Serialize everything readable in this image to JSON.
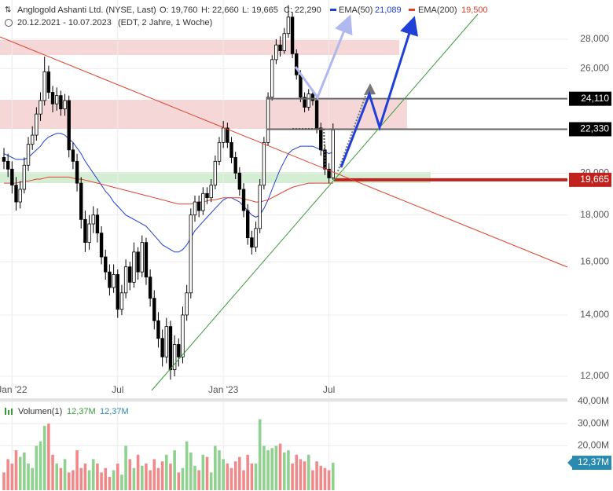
{
  "chart_data": {
    "type": "candlestick",
    "header": {
      "title": "Anglogold Ashanti Ltd. (NYSE, Last)",
      "open": "O: 19,760",
      "high": "H: 22,660",
      "low": "L: 19,665",
      "close": "C: 22,290",
      "range": "20.12.2021 - 10.07.2023",
      "info": "(EDT, 2 Jahre, 1 Woche)"
    },
    "categories": [
      null,
      null,
      "Jan '22",
      null,
      null,
      null,
      null,
      null,
      null,
      null,
      null,
      null,
      null,
      null,
      null,
      null,
      null,
      null,
      null,
      null,
      null,
      null,
      null,
      null,
      null,
      null,
      null,
      null,
      "Jul",
      null,
      null,
      null,
      null,
      null,
      null,
      null,
      null,
      null,
      null,
      null,
      null,
      null,
      null,
      null,
      null,
      null,
      null,
      null,
      null,
      null,
      null,
      null,
      null,
      null,
      "Jan '23",
      null,
      null,
      null,
      null,
      null,
      null,
      null,
      null,
      null,
      null,
      null,
      null,
      null,
      null,
      null,
      null,
      null,
      null,
      null,
      null,
      null,
      null,
      null,
      null,
      null,
      "Jul",
      null
    ],
    "ohlc": [
      [
        20.8,
        21.3,
        20.2,
        20.6
      ],
      [
        20.6,
        21.0,
        19.8,
        20.2
      ],
      [
        20.2,
        20.6,
        19.0,
        19.4
      ],
      [
        19.4,
        19.8,
        18.2,
        18.6
      ],
      [
        18.6,
        19.6,
        18.3,
        19.2
      ],
      [
        19.2,
        20.8,
        19.0,
        20.4
      ],
      [
        20.4,
        21.9,
        20.1,
        21.5
      ],
      [
        21.5,
        22.5,
        21.2,
        22.0
      ],
      [
        22.0,
        23.6,
        21.7,
        23.2
      ],
      [
        23.2,
        24.5,
        22.8,
        24.0
      ],
      [
        24.0,
        26.8,
        23.7,
        25.8
      ],
      [
        25.8,
        26.2,
        24.1,
        24.5
      ],
      [
        24.5,
        24.9,
        23.3,
        23.8
      ],
      [
        23.8,
        24.8,
        23.4,
        24.3
      ],
      [
        24.3,
        24.6,
        23.1,
        23.5
      ],
      [
        23.5,
        24.4,
        23.1,
        24.0
      ],
      [
        24.0,
        24.3,
        20.8,
        21.2
      ],
      [
        21.2,
        21.6,
        20.2,
        20.6
      ],
      [
        20.6,
        21.0,
        19.1,
        19.5
      ],
      [
        19.5,
        19.8,
        17.4,
        17.8
      ],
      [
        17.8,
        18.2,
        16.4,
        16.8
      ],
      [
        16.8,
        18.0,
        16.5,
        17.6
      ],
      [
        17.6,
        18.4,
        17.2,
        18.0
      ],
      [
        18.0,
        18.3,
        16.8,
        17.2
      ],
      [
        17.2,
        17.5,
        15.9,
        16.2
      ],
      [
        16.2,
        16.5,
        15.3,
        15.6
      ],
      [
        15.6,
        15.9,
        14.7,
        15.0
      ],
      [
        15.0,
        15.9,
        14.8,
        15.5
      ],
      [
        15.5,
        15.7,
        13.9,
        14.2
      ],
      [
        14.2,
        15.1,
        14.0,
        14.8
      ],
      [
        14.8,
        16.1,
        14.6,
        15.8
      ],
      [
        15.8,
        16.0,
        14.9,
        15.2
      ],
      [
        15.2,
        16.8,
        15.0,
        16.4
      ],
      [
        16.4,
        16.6,
        15.3,
        15.6
      ],
      [
        15.6,
        17.1,
        15.4,
        16.8
      ],
      [
        16.8,
        17.0,
        15.1,
        15.4
      ],
      [
        15.4,
        15.7,
        14.3,
        14.6
      ],
      [
        14.6,
        14.9,
        13.5,
        13.8
      ],
      [
        13.8,
        14.1,
        12.9,
        13.2
      ],
      [
        13.2,
        13.5,
        12.3,
        12.6
      ],
      [
        12.6,
        13.9,
        12.4,
        13.6
      ],
      [
        13.6,
        13.8,
        11.9,
        12.2
      ],
      [
        12.2,
        13.3,
        12.0,
        13.0
      ],
      [
        13.0,
        13.2,
        12.3,
        12.6
      ],
      [
        12.6,
        14.3,
        12.4,
        14.0
      ],
      [
        14.0,
        15.1,
        13.8,
        14.8
      ],
      [
        14.8,
        18.3,
        14.6,
        18.0
      ],
      [
        18.0,
        18.9,
        17.7,
        18.6
      ],
      [
        18.6,
        18.9,
        17.9,
        18.2
      ],
      [
        18.2,
        19.3,
        18.0,
        19.0
      ],
      [
        19.0,
        19.3,
        18.5,
        18.8
      ],
      [
        18.8,
        19.7,
        18.6,
        19.4
      ],
      [
        19.4,
        20.9,
        19.2,
        20.6
      ],
      [
        20.6,
        21.9,
        20.4,
        21.6
      ],
      [
        21.6,
        22.8,
        21.3,
        22.4
      ],
      [
        22.4,
        22.7,
        21.3,
        21.6
      ],
      [
        21.6,
        21.9,
        20.5,
        20.8
      ],
      [
        20.8,
        21.1,
        19.7,
        20.0
      ],
      [
        20.0,
        20.3,
        18.9,
        19.2
      ],
      [
        19.2,
        19.5,
        17.9,
        18.2
      ],
      [
        18.2,
        18.5,
        16.7,
        17.0
      ],
      [
        17.0,
        17.3,
        16.3,
        16.6
      ],
      [
        16.6,
        17.7,
        16.4,
        17.4
      ],
      [
        17.4,
        19.7,
        17.2,
        19.4
      ],
      [
        19.4,
        21.9,
        19.2,
        21.6
      ],
      [
        21.6,
        24.5,
        21.4,
        24.2
      ],
      [
        24.2,
        26.9,
        24.0,
        26.6
      ],
      [
        26.6,
        28.0,
        26.3,
        27.6
      ],
      [
        27.6,
        28.2,
        26.8,
        27.2
      ],
      [
        27.2,
        28.8,
        27.0,
        28.4
      ],
      [
        28.4,
        30.5,
        28.1,
        29.6
      ],
      [
        29.6,
        30.0,
        26.7,
        27.0
      ],
      [
        27.0,
        27.3,
        25.3,
        25.6
      ],
      [
        25.6,
        25.9,
        23.9,
        24.2
      ],
      [
        24.2,
        24.5,
        23.3,
        23.6
      ],
      [
        23.6,
        24.7,
        23.4,
        24.4
      ],
      [
        24.4,
        24.7,
        23.7,
        24.0
      ],
      [
        24.0,
        24.3,
        22.1,
        22.4
      ],
      [
        22.4,
        22.7,
        20.9,
        21.2
      ],
      [
        21.2,
        21.5,
        19.9,
        20.2
      ],
      [
        20.2,
        20.5,
        19.5,
        19.76
      ],
      [
        19.76,
        22.66,
        19.665,
        22.29
      ]
    ],
    "series": [
      {
        "name": "EMA(50)",
        "color": "#1f3fd6",
        "legend_value": "21,089",
        "values": [
          21.0,
          20.9,
          20.8,
          20.7,
          20.7,
          20.7,
          20.8,
          21.0,
          21.2,
          21.4,
          21.7,
          21.9,
          22.0,
          22.1,
          22.1,
          22.0,
          21.8,
          21.6,
          21.3,
          21.0,
          20.6,
          20.3,
          20.0,
          19.7,
          19.4,
          19.1,
          18.9,
          18.6,
          18.4,
          18.2,
          18.0,
          17.9,
          17.8,
          17.7,
          17.6,
          17.5,
          17.3,
          17.1,
          16.9,
          16.7,
          16.6,
          16.5,
          16.4,
          16.4,
          16.5,
          16.7,
          17.0,
          17.3,
          17.5,
          17.7,
          17.9,
          18.1,
          18.3,
          18.5,
          18.7,
          18.8,
          18.8,
          18.7,
          18.6,
          18.4,
          18.2,
          18.0,
          17.9,
          18.0,
          18.3,
          18.7,
          19.2,
          19.7,
          20.2,
          20.6,
          21.0,
          21.2,
          21.3,
          21.4,
          21.4,
          21.4,
          21.4,
          21.3,
          21.2,
          21.1,
          21.0,
          21.089
        ]
      },
      {
        "name": "EMA(200)",
        "color": "#e0402c",
        "legend_value": "19,500",
        "values": [
          19.5,
          19.5,
          19.5,
          19.5,
          19.55,
          19.6,
          19.6,
          19.65,
          19.7,
          19.7,
          19.75,
          19.8,
          19.8,
          19.8,
          19.8,
          19.8,
          19.8,
          19.75,
          19.7,
          19.7,
          19.65,
          19.6,
          19.55,
          19.5,
          19.45,
          19.4,
          19.35,
          19.3,
          19.25,
          19.2,
          19.15,
          19.1,
          19.05,
          19.0,
          18.95,
          18.9,
          18.85,
          18.8,
          18.75,
          18.7,
          18.65,
          18.6,
          18.55,
          18.5,
          18.5,
          18.5,
          18.5,
          18.55,
          18.6,
          18.6,
          18.65,
          18.7,
          18.7,
          18.75,
          18.8,
          18.8,
          18.8,
          18.8,
          18.8,
          18.75,
          18.7,
          18.65,
          18.6,
          18.6,
          18.65,
          18.7,
          18.8,
          18.9,
          19.0,
          19.1,
          19.2,
          19.3,
          19.35,
          19.4,
          19.45,
          19.5,
          19.5,
          19.5,
          19.5,
          19.5,
          19.5,
          19.5
        ]
      }
    ],
    "ylim": [
      11.4,
      30.9
    ],
    "log_scale": true,
    "grid": true,
    "yticks": [
      {
        "value": 12,
        "label": "12,000"
      },
      {
        "value": 14,
        "label": "14,000"
      },
      {
        "value": 16,
        "label": "16,000"
      },
      {
        "value": 18,
        "label": "18,000"
      },
      {
        "value": 20,
        "label": "20,000"
      },
      {
        "value": 26,
        "label": "26,000"
      },
      {
        "value": 28,
        "label": "28,000"
      }
    ],
    "levels": [
      {
        "value": 24.11,
        "label": "24,110",
        "color": "#000000"
      },
      {
        "value": 22.33,
        "label": "22,330",
        "color": "#000000"
      },
      {
        "value": 19.665,
        "label": "19,665",
        "color": "#c0221e"
      }
    ],
    "volume": {
      "name": "Volumen(1)",
      "last_label": "12,37M",
      "colors": {
        "up": "#8fd18f",
        "down": "#f08a8a"
      },
      "values": [
        8,
        14,
        12,
        18,
        15,
        17,
        12,
        10,
        20,
        22,
        29,
        30,
        16,
        12,
        10,
        14,
        8,
        9,
        18,
        10,
        12,
        9,
        14,
        12,
        8,
        10,
        6,
        9,
        12,
        7,
        20,
        14,
        10,
        16,
        11,
        12,
        9,
        14,
        10,
        13,
        16,
        12,
        18,
        8,
        10,
        22,
        17,
        11,
        9,
        16,
        15,
        8,
        20,
        18,
        14,
        12,
        10,
        13,
        15,
        9,
        16,
        12,
        12,
        32,
        20,
        18,
        19,
        20,
        21,
        17,
        18,
        12,
        16,
        14,
        13,
        16,
        9,
        13,
        11,
        10,
        9,
        12.37
      ],
      "ylim": [
        0,
        40
      ],
      "yticks": [
        {
          "value": 20,
          "label": "20,00M"
        },
        {
          "value": 30,
          "label": "30,00M"
        },
        {
          "value": 40,
          "label": "40,00M"
        }
      ]
    }
  }
}
